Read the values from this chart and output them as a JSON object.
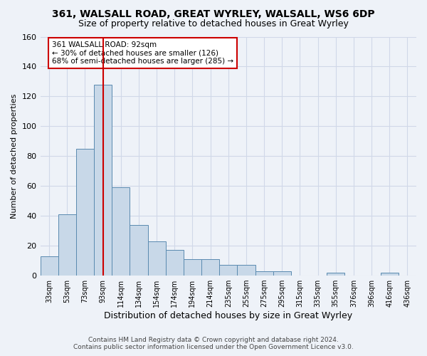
{
  "title1": "361, WALSALL ROAD, GREAT WYRLEY, WALSALL, WS6 6DP",
  "title2": "Size of property relative to detached houses in Great Wyrley",
  "xlabel": "Distribution of detached houses by size in Great Wyrley",
  "ylabel": "Number of detached properties",
  "footer1": "Contains HM Land Registry data © Crown copyright and database right 2024.",
  "footer2": "Contains public sector information licensed under the Open Government Licence v3.0.",
  "bin_labels": [
    "33sqm",
    "53sqm",
    "73sqm",
    "93sqm",
    "114sqm",
    "134sqm",
    "154sqm",
    "174sqm",
    "194sqm",
    "214sqm",
    "235sqm",
    "255sqm",
    "275sqm",
    "295sqm",
    "315sqm",
    "335sqm",
    "355sqm",
    "376sqm",
    "396sqm",
    "416sqm",
    "436sqm"
  ],
  "bar_heights": [
    13,
    41,
    85,
    128,
    59,
    34,
    23,
    17,
    11,
    11,
    7,
    7,
    3,
    3,
    0,
    0,
    2,
    0,
    0,
    2,
    0
  ],
  "bar_color": "#c8d8e8",
  "bar_edge_color": "#5a8ab0",
  "grid_color": "#d0d8e8",
  "background_color": "#eef2f8",
  "vline_x": 3,
  "vline_color": "#cc0000",
  "annotation_line1": "361 WALSALL ROAD: 92sqm",
  "annotation_line2": "← 30% of detached houses are smaller (126)",
  "annotation_line3": "68% of semi-detached houses are larger (285) →",
  "annotation_box_color": "#ffffff",
  "annotation_box_edge": "#cc0000",
  "ylim": [
    0,
    160
  ],
  "yticks": [
    0,
    20,
    40,
    60,
    80,
    100,
    120,
    140,
    160
  ]
}
